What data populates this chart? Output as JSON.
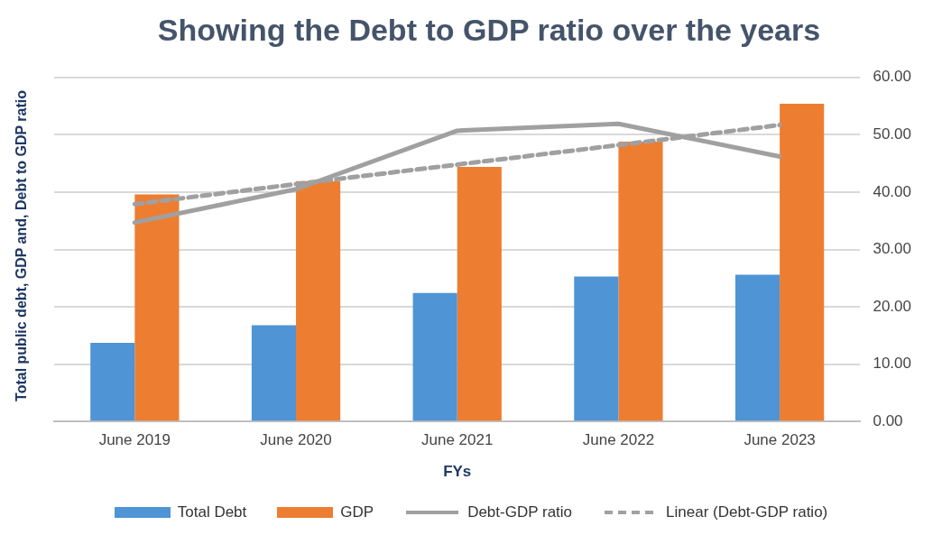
{
  "chart_data": {
    "type": "bar",
    "title": "Showing the Debt to GDP ratio over the years",
    "xlabel": "FYs",
    "ylabel": "Total public debt, GDP and, Debt to GDP ratio",
    "categories": [
      "June 2019",
      "June 2020",
      "June 2021",
      "June 2022",
      "June 2023"
    ],
    "series": [
      {
        "name": "Total Debt",
        "color": "#4f94d4",
        "values": [
          13.7,
          16.8,
          22.4,
          25.3,
          25.6
        ]
      },
      {
        "name": "GDP",
        "color": "#ed7d31",
        "values": [
          39.6,
          41.9,
          44.4,
          48.8,
          55.4
        ]
      },
      {
        "name": "Debt-GDP ratio",
        "type": "line",
        "color": "#a0a0a0",
        "line_style": "solid",
        "values": [
          34.7,
          40.5,
          50.7,
          51.9,
          46.2
        ]
      },
      {
        "name": "Linear (Debt-GDP ratio)",
        "type": "line",
        "color": "#a0a0a0",
        "line_style": "dashed",
        "values": [
          37.9,
          41.4,
          44.8,
          48.2,
          51.7
        ]
      }
    ],
    "ylim": [
      0,
      60
    ],
    "yticks": [
      {
        "value": 0,
        "label": "0.00"
      },
      {
        "value": 10,
        "label": "10.00"
      },
      {
        "value": 20,
        "label": "20.00"
      },
      {
        "value": 30,
        "label": "30.00"
      },
      {
        "value": 40,
        "label": "40.00"
      },
      {
        "value": 50,
        "label": "50.00"
      },
      {
        "value": 60,
        "label": "60.00"
      }
    ],
    "grid": "y",
    "legend": "bottom",
    "marker": "none"
  }
}
